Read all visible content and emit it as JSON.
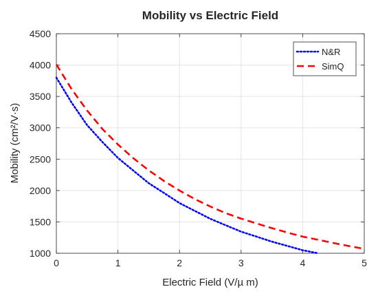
{
  "chart_data": {
    "type": "line",
    "title": "Mobility vs Electric Field",
    "xlabel": "Electric Field (V/µ m)",
    "ylabel": "Mobility (cm²/V·s)",
    "xlim": [
      0,
      5
    ],
    "ylim": [
      1000,
      4500
    ],
    "xticks": [
      0,
      1,
      2,
      3,
      4,
      5
    ],
    "yticks": [
      1000,
      1500,
      2000,
      2500,
      3000,
      3500,
      4000,
      4500
    ],
    "grid": true,
    "legend_position": "top-right",
    "series": [
      {
        "name": "N&R",
        "color": "#0000ff",
        "style": "dotted",
        "x": [
          0,
          0.25,
          0.5,
          0.75,
          1,
          1.25,
          1.5,
          1.75,
          2,
          2.25,
          2.5,
          2.75,
          3,
          3.25,
          3.5,
          3.75,
          4,
          4.25
        ],
        "y": [
          3800,
          3397,
          3042,
          2771,
          2520,
          2318,
          2117,
          1960,
          1800,
          1675,
          1550,
          1447,
          1345,
          1265,
          1185,
          1117,
          1048,
          1000
        ]
      },
      {
        "name": "SimQ",
        "color": "#ff0000",
        "style": "dashed",
        "x": [
          0,
          0.25,
          0.5,
          0.75,
          1,
          1.25,
          1.5,
          1.75,
          2,
          2.25,
          2.5,
          2.75,
          3,
          3.25,
          3.5,
          3.75,
          4,
          4.25,
          4.5,
          4.75,
          5
        ],
        "y": [
          4010,
          3614,
          3274,
          2978,
          2733,
          2515,
          2322,
          2151,
          2000,
          1862,
          1745,
          1640,
          1553,
          1475,
          1400,
          1330,
          1265,
          1215,
          1163,
          1115,
          1070
        ]
      }
    ]
  }
}
